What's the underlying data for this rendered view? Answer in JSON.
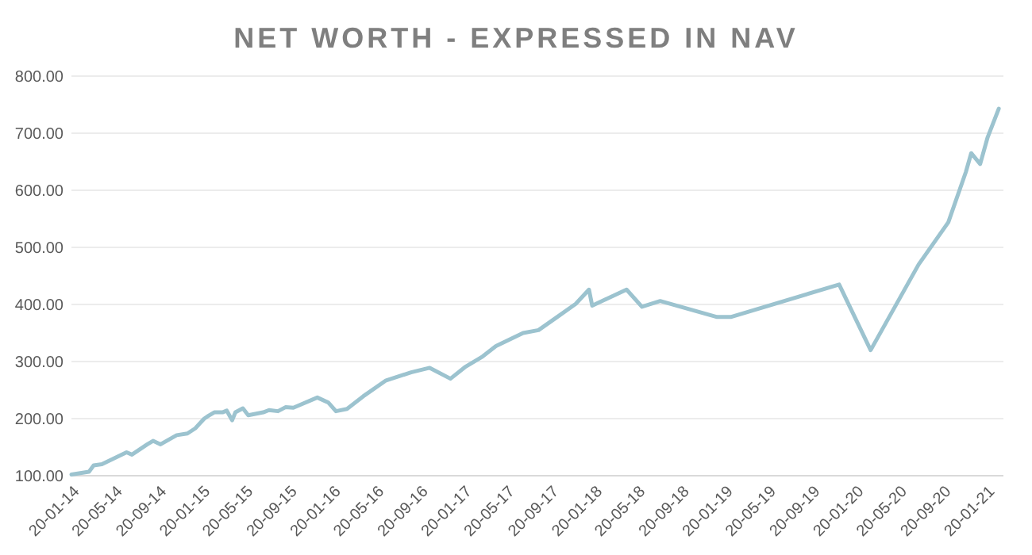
{
  "chart_data": {
    "type": "line",
    "title": "NET WORTH - EXPRESSED IN NAV",
    "x": [
      "2014-01-20",
      "2014-03-10",
      "2014-03-23",
      "2014-04-15",
      "2014-06-23",
      "2014-07-08",
      "2014-08-20",
      "2014-09-05",
      "2014-09-26",
      "2014-11-10",
      "2014-12-10",
      "2015-01-01",
      "2015-01-26",
      "2015-02-07",
      "2015-02-23",
      "2015-03-18",
      "2015-03-30",
      "2015-04-14",
      "2015-04-23",
      "2015-05-14",
      "2015-05-29",
      "2015-07-10",
      "2015-07-26",
      "2015-08-20",
      "2015-09-10",
      "2015-10-02",
      "2015-12-08",
      "2016-01-08",
      "2016-01-29",
      "2016-02-29",
      "2016-04-14",
      "2016-06-17",
      "2016-08-11",
      "2016-08-26",
      "2016-10-17",
      "2016-12-14",
      "2017-01-23",
      "2017-03-14",
      "2017-04-20",
      "2017-06-05",
      "2017-07-05",
      "2017-08-17",
      "2017-10-08",
      "2017-11-29",
      "2018-01-05",
      "2018-01-14",
      "2018-04-20",
      "2018-06-02",
      "2018-07-23",
      "2018-12-29",
      "2019-02-05",
      "2019-12-05",
      "2020-03-02",
      "2020-07-14",
      "2020-10-05",
      "2020-11-23",
      "2020-12-08",
      "2021-01-02",
      "2021-01-23",
      "2021-02-23"
    ],
    "series": [
      {
        "color": "#9cc3cf",
        "values": [
          102,
          107,
          118,
          120,
          141,
          137,
          155,
          161,
          155,
          171,
          174,
          183,
          200,
          205,
          211,
          211,
          214,
          197,
          211,
          218,
          206,
          211,
          215,
          213,
          220,
          219,
          237,
          228,
          213,
          217,
          239,
          267,
          278,
          281,
          289,
          270,
          290,
          309,
          327,
          341,
          350,
          355,
          378,
          401,
          426,
          398,
          426,
          396,
          406,
          378,
          378,
          435,
          320,
          470,
          544,
          632,
          665,
          646,
          693,
          743
        ]
      }
    ],
    "xlim": [
      "2014-01-20",
      "2021-03-08"
    ],
    "xticks": [
      {
        "value": "2014-01-20",
        "label": "20-01-14"
      },
      {
        "value": "2014-05-20",
        "label": "20-05-14"
      },
      {
        "value": "2014-09-20",
        "label": "20-09-14"
      },
      {
        "value": "2015-01-20",
        "label": "20-01-15"
      },
      {
        "value": "2015-05-20",
        "label": "20-05-15"
      },
      {
        "value": "2015-09-20",
        "label": "20-09-15"
      },
      {
        "value": "2016-01-20",
        "label": "20-01-16"
      },
      {
        "value": "2016-05-20",
        "label": "20-05-16"
      },
      {
        "value": "2016-09-20",
        "label": "20-09-16"
      },
      {
        "value": "2017-01-20",
        "label": "20-01-17"
      },
      {
        "value": "2017-05-20",
        "label": "20-05-17"
      },
      {
        "value": "2017-09-20",
        "label": "20-09-17"
      },
      {
        "value": "2018-01-20",
        "label": "20-01-18"
      },
      {
        "value": "2018-05-20",
        "label": "20-05-18"
      },
      {
        "value": "2018-09-20",
        "label": "20-09-18"
      },
      {
        "value": "2019-01-20",
        "label": "20-01-19"
      },
      {
        "value": "2019-05-20",
        "label": "20-05-19"
      },
      {
        "value": "2019-09-20",
        "label": "20-09-19"
      },
      {
        "value": "2020-01-20",
        "label": "20-01-20"
      },
      {
        "value": "2020-05-20",
        "label": "20-05-20"
      },
      {
        "value": "2020-09-20",
        "label": "20-09-20"
      },
      {
        "value": "2021-01-20",
        "label": "20-01-21"
      }
    ],
    "ylim": [
      100,
      800
    ],
    "yticks": [
      {
        "value": 100,
        "label": "100.00"
      },
      {
        "value": 200,
        "label": "200.00"
      },
      {
        "value": 300,
        "label": "300.00"
      },
      {
        "value": 400,
        "label": "400.00"
      },
      {
        "value": 500,
        "label": "500.00"
      },
      {
        "value": 600,
        "label": "600.00"
      },
      {
        "value": 700,
        "label": "700.00"
      },
      {
        "value": 800,
        "label": "800.00"
      }
    ],
    "grid": "y"
  }
}
